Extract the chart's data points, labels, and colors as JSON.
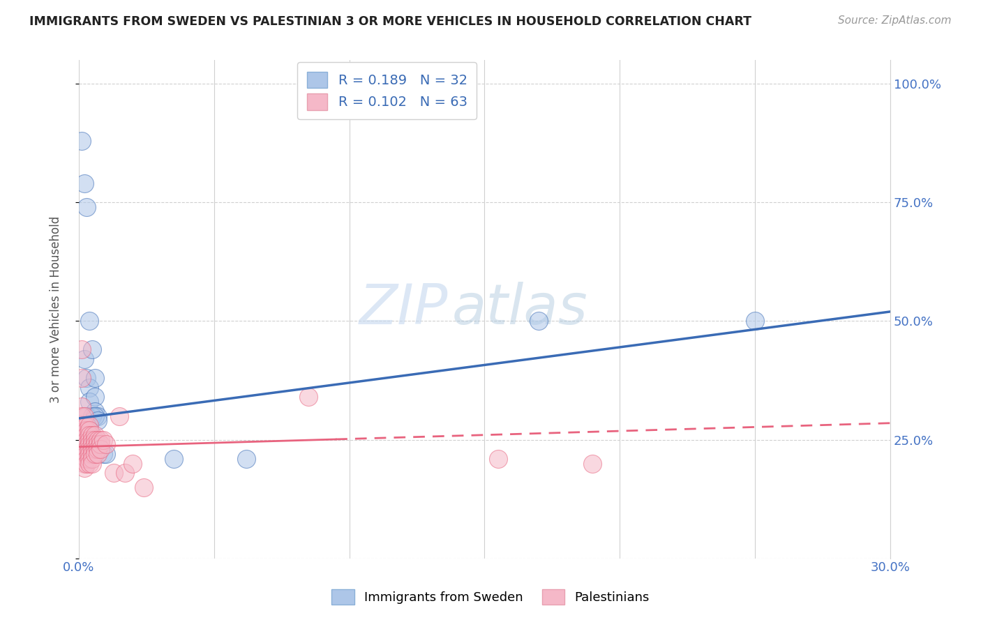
{
  "title": "IMMIGRANTS FROM SWEDEN VS PALESTINIAN 3 OR MORE VEHICLES IN HOUSEHOLD CORRELATION CHART",
  "source": "Source: ZipAtlas.com",
  "ylabel": "3 or more Vehicles in Household",
  "xmin": 0.0,
  "xmax": 0.3,
  "ymin": 0.0,
  "ymax": 1.05,
  "yticks": [
    0.0,
    0.25,
    0.5,
    0.75,
    1.0
  ],
  "ytick_labels": [
    "",
    "25.0%",
    "50.0%",
    "75.0%",
    "100.0%"
  ],
  "xticks": [
    0.0,
    0.05,
    0.1,
    0.15,
    0.2,
    0.25,
    0.3
  ],
  "xtick_labels": [
    "0.0%",
    "",
    "",
    "",
    "",
    "",
    "30.0%"
  ],
  "sweden_color": "#adc6e8",
  "sweden_line_color": "#3a6bb5",
  "palestine_color": "#f5b8c8",
  "palestine_line_color": "#e8637e",
  "R_sweden": 0.189,
  "N_sweden": 32,
  "R_palestine": 0.102,
  "N_palestine": 63,
  "legend_label_sweden": "Immigrants from Sweden",
  "legend_label_palestine": "Palestinians",
  "watermark_zip": "ZIP",
  "watermark_atlas": "atlas",
  "sweden_points": [
    [
      0.001,
      0.88
    ],
    [
      0.002,
      0.79
    ],
    [
      0.003,
      0.74
    ],
    [
      0.004,
      0.5
    ],
    [
      0.002,
      0.42
    ],
    [
      0.003,
      0.38
    ],
    [
      0.004,
      0.36
    ],
    [
      0.004,
      0.33
    ],
    [
      0.005,
      0.44
    ],
    [
      0.006,
      0.38
    ],
    [
      0.006,
      0.34
    ],
    [
      0.006,
      0.31
    ],
    [
      0.007,
      0.3
    ],
    [
      0.003,
      0.3
    ],
    [
      0.005,
      0.3
    ],
    [
      0.006,
      0.3
    ],
    [
      0.007,
      0.29
    ],
    [
      0.002,
      0.28
    ],
    [
      0.003,
      0.27
    ],
    [
      0.004,
      0.27
    ],
    [
      0.001,
      0.26
    ],
    [
      0.002,
      0.26
    ],
    [
      0.003,
      0.26
    ],
    [
      0.001,
      0.25
    ],
    [
      0.002,
      0.24
    ],
    [
      0.001,
      0.23
    ],
    [
      0.009,
      0.22
    ],
    [
      0.01,
      0.22
    ],
    [
      0.035,
      0.21
    ],
    [
      0.062,
      0.21
    ],
    [
      0.17,
      0.5
    ],
    [
      0.25,
      0.5
    ]
  ],
  "palestine_points": [
    [
      0.001,
      0.44
    ],
    [
      0.001,
      0.38
    ],
    [
      0.001,
      0.32
    ],
    [
      0.001,
      0.3
    ],
    [
      0.001,
      0.28
    ],
    [
      0.002,
      0.3
    ],
    [
      0.002,
      0.28
    ],
    [
      0.002,
      0.27
    ],
    [
      0.002,
      0.26
    ],
    [
      0.002,
      0.25
    ],
    [
      0.002,
      0.24
    ],
    [
      0.002,
      0.23
    ],
    [
      0.002,
      0.22
    ],
    [
      0.002,
      0.21
    ],
    [
      0.002,
      0.2
    ],
    [
      0.002,
      0.19
    ],
    [
      0.003,
      0.28
    ],
    [
      0.003,
      0.27
    ],
    [
      0.003,
      0.26
    ],
    [
      0.003,
      0.25
    ],
    [
      0.003,
      0.24
    ],
    [
      0.003,
      0.23
    ],
    [
      0.003,
      0.22
    ],
    [
      0.003,
      0.21
    ],
    [
      0.003,
      0.2
    ],
    [
      0.004,
      0.28
    ],
    [
      0.004,
      0.27
    ],
    [
      0.004,
      0.26
    ],
    [
      0.004,
      0.25
    ],
    [
      0.004,
      0.24
    ],
    [
      0.004,
      0.23
    ],
    [
      0.004,
      0.22
    ],
    [
      0.004,
      0.21
    ],
    [
      0.004,
      0.2
    ],
    [
      0.005,
      0.26
    ],
    [
      0.005,
      0.25
    ],
    [
      0.005,
      0.24
    ],
    [
      0.005,
      0.23
    ],
    [
      0.005,
      0.22
    ],
    [
      0.005,
      0.21
    ],
    [
      0.005,
      0.2
    ],
    [
      0.006,
      0.26
    ],
    [
      0.006,
      0.25
    ],
    [
      0.006,
      0.24
    ],
    [
      0.006,
      0.23
    ],
    [
      0.006,
      0.22
    ],
    [
      0.007,
      0.25
    ],
    [
      0.007,
      0.24
    ],
    [
      0.007,
      0.23
    ],
    [
      0.007,
      0.22
    ],
    [
      0.008,
      0.25
    ],
    [
      0.008,
      0.24
    ],
    [
      0.008,
      0.23
    ],
    [
      0.009,
      0.25
    ],
    [
      0.01,
      0.24
    ],
    [
      0.013,
      0.18
    ],
    [
      0.015,
      0.3
    ],
    [
      0.017,
      0.18
    ],
    [
      0.02,
      0.2
    ],
    [
      0.024,
      0.15
    ],
    [
      0.085,
      0.34
    ],
    [
      0.155,
      0.21
    ],
    [
      0.19,
      0.2
    ]
  ]
}
